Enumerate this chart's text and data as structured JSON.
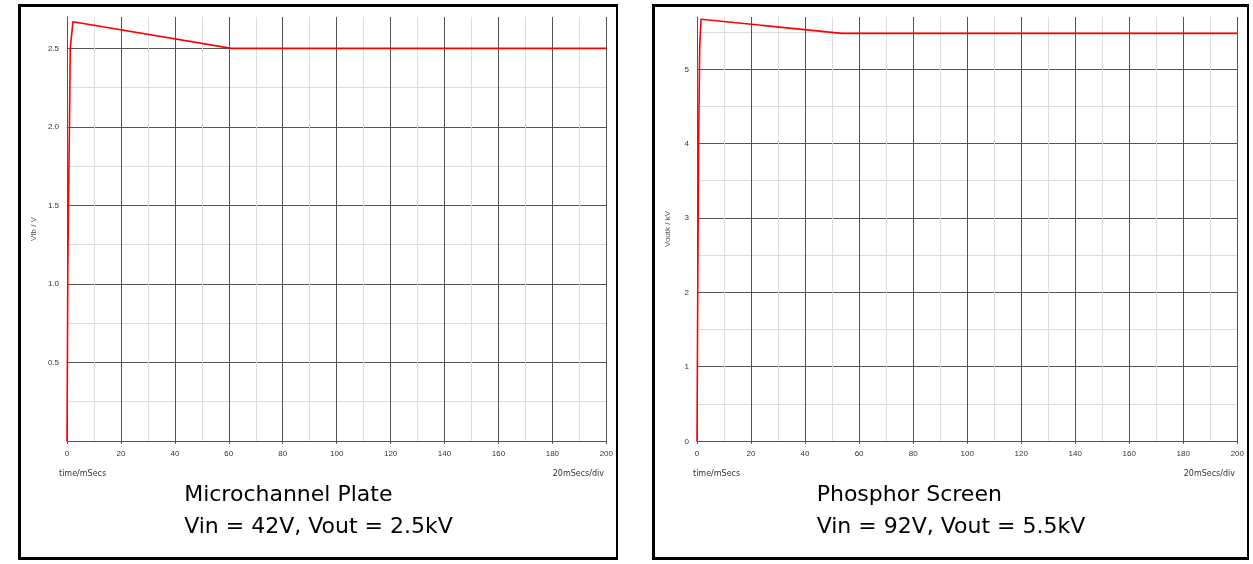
{
  "chart_data": [
    {
      "type": "line",
      "title": "Microchannel Plate",
      "subtitle": "Vin = 42V, Vout = 2.5kV",
      "xlabel": "time/mSecs",
      "ylabel": "Vfb / V",
      "annotations": [
        "20mSecs/div"
      ],
      "series": [
        {
          "color": "#ff0000",
          "x": [
            0,
            0.3,
            0.6,
            0.9,
            1.2,
            2.2,
            61,
            200
          ],
          "values": [
            0,
            1.1,
            1.6,
            2.0,
            2.5,
            2.67,
            2.5,
            2.5
          ]
        }
      ],
      "xlim": [
        0,
        200
      ],
      "xticks": [
        0,
        20,
        40,
        60,
        80,
        100,
        120,
        140,
        160,
        180,
        200
      ],
      "ylim": [
        0,
        2.7
      ],
      "yticks": [
        {
          "value": 0,
          "label": null
        },
        0.5,
        {
          "value": 1,
          "label": "1.0"
        },
        1.5,
        {
          "value": 2,
          "label": "2.0"
        },
        2.5
      ],
      "grid": true,
      "marker": "none",
      "line_style": "solid"
    },
    {
      "type": "line",
      "title": "Phosphor Screen",
      "subtitle": "Vin = 92V, Vout = 5.5kV",
      "xlabel": "time/mSecs",
      "ylabel": "Voutk / kV",
      "annotations": [
        "20mSecs/div"
      ],
      "series": [
        {
          "color": "#ff0000",
          "x": [
            0,
            0.3,
            0.6,
            1.0,
            1.5,
            53.6,
            200
          ],
          "values": [
            0,
            2.2,
            4.0,
            5.3,
            5.67,
            5.48,
            5.48
          ]
        }
      ],
      "xlim": [
        0,
        200
      ],
      "xticks": [
        0,
        20,
        40,
        60,
        80,
        100,
        120,
        140,
        160,
        180,
        200
      ],
      "ylim": [
        0,
        5.7
      ],
      "yticks": [
        0,
        1,
        2,
        3,
        4,
        5
      ],
      "grid": true,
      "marker": "none",
      "line_style": "solid"
    }
  ]
}
